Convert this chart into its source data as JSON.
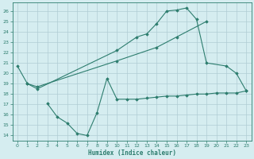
{
  "line1_x": [
    0,
    1,
    2,
    10,
    12,
    13,
    14,
    15,
    16,
    17,
    18,
    19,
    21,
    22,
    23
  ],
  "line1_y": [
    20.7,
    19.0,
    18.5,
    22.2,
    23.5,
    23.8,
    24.8,
    26.0,
    26.1,
    26.3,
    25.2,
    21.0,
    20.7,
    20.0,
    18.3
  ],
  "line2_x": [
    1,
    2,
    10,
    14,
    16,
    19
  ],
  "line2_y": [
    19.0,
    18.7,
    21.2,
    22.5,
    23.5,
    25.0
  ],
  "line3_x": [
    3,
    4,
    5,
    6,
    7,
    8,
    9,
    10,
    11,
    12,
    13,
    14,
    15,
    16,
    17,
    18,
    19,
    20,
    21,
    22,
    23
  ],
  "line3_y": [
    17.1,
    15.8,
    15.2,
    14.2,
    14.0,
    16.2,
    19.5,
    17.5,
    17.5,
    17.5,
    17.6,
    17.7,
    17.8,
    17.8,
    17.9,
    18.0,
    18.0,
    18.1,
    18.1,
    18.1,
    18.3
  ],
  "line_color": "#2d7d6e",
  "bg_color": "#d5edf0",
  "grid_color": "#b0cdd4",
  "xlabel": "Humidex (Indice chaleur)",
  "xlim": [
    -0.5,
    23.5
  ],
  "ylim": [
    13.5,
    26.8
  ],
  "yticks": [
    14,
    15,
    16,
    17,
    18,
    19,
    20,
    21,
    22,
    23,
    24,
    25,
    26
  ],
  "xticks": [
    0,
    1,
    2,
    3,
    4,
    5,
    6,
    7,
    8,
    9,
    10,
    11,
    12,
    13,
    14,
    15,
    16,
    17,
    18,
    19,
    20,
    21,
    22,
    23
  ]
}
